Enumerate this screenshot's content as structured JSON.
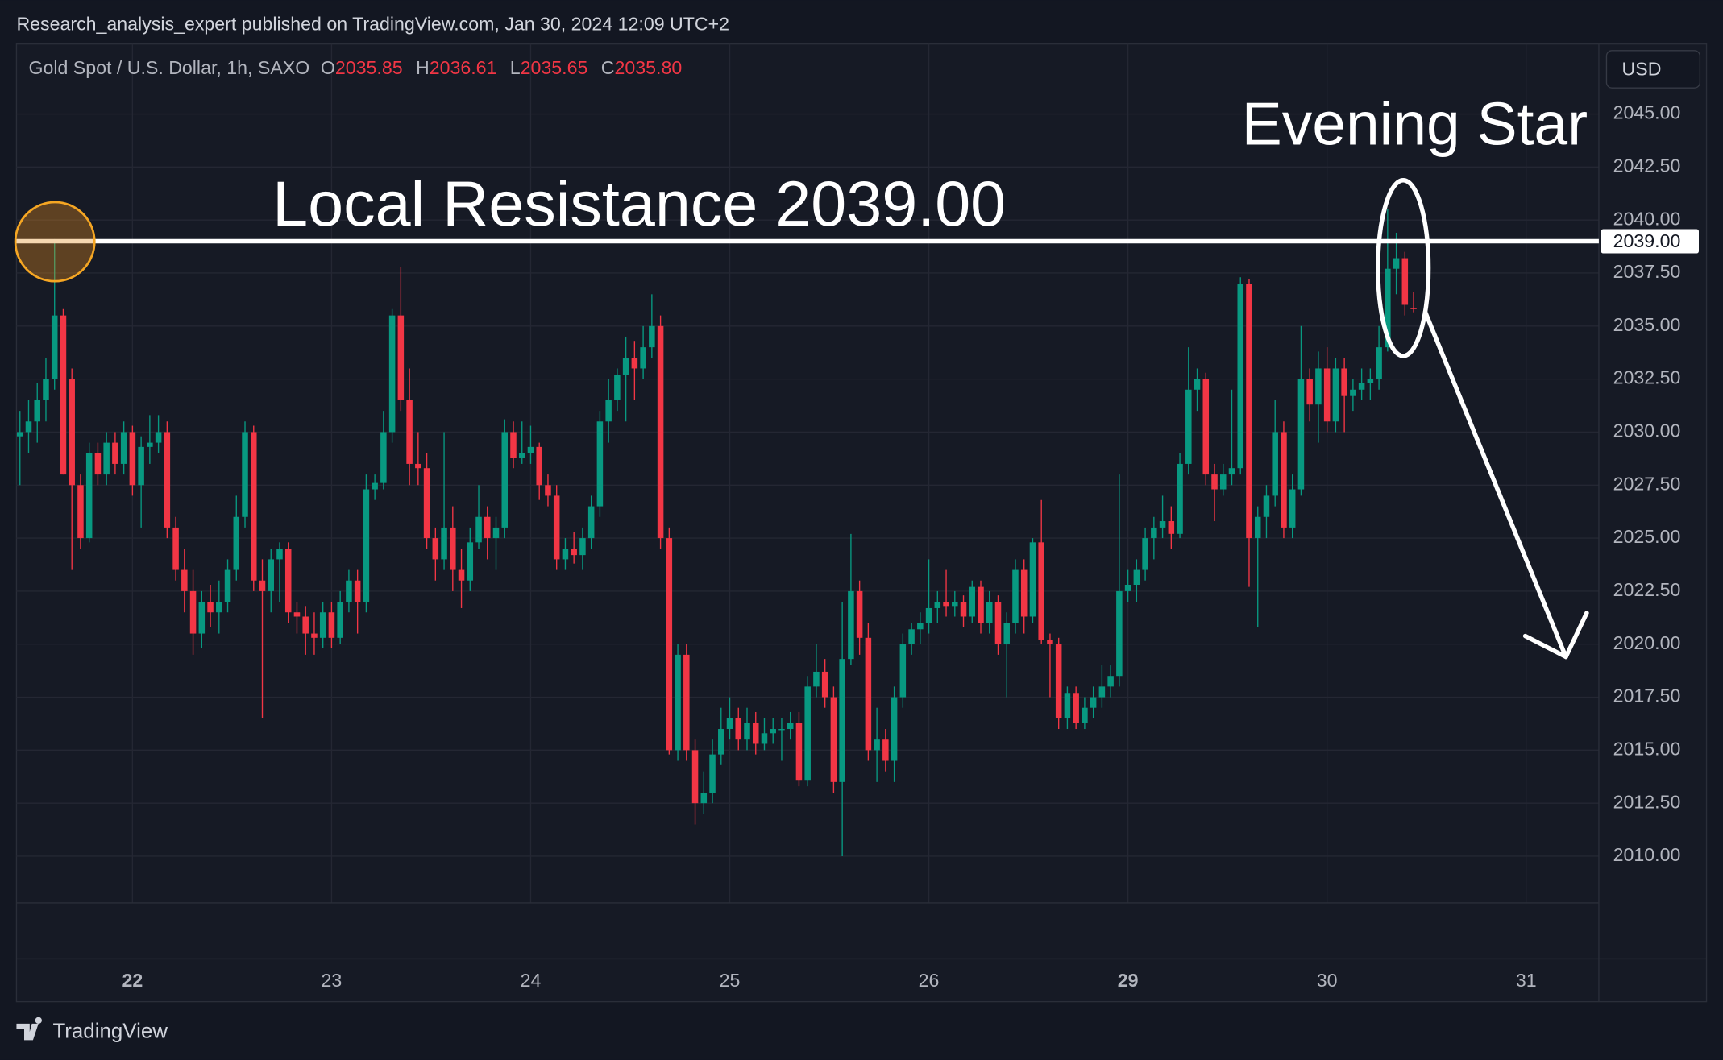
{
  "header": {
    "publisher": "Research_analysis_expert published on TradingView.com, Jan 30, 2024 12:09 UTC+2"
  },
  "chart_data": {
    "type": "candlestick",
    "symbol": "Gold Spot / U.S. Dollar, 1h, SAXO",
    "ohlc_legend": [
      {
        "label": "O",
        "value": "2035.85"
      },
      {
        "label": "H",
        "value": "2036.61"
      },
      {
        "label": "L",
        "value": "2035.65"
      },
      {
        "label": "C",
        "value": "2035.80"
      }
    ],
    "currency": "USD",
    "up_color": "#089981",
    "down_color": "#f23645",
    "candles": [
      [
        2029.8,
        2031,
        2027.5,
        2030.0
      ],
      [
        2030.0,
        2031.5,
        2029.0,
        2030.5
      ],
      [
        2030.5,
        2032.3,
        2029.5,
        2031.5
      ],
      [
        2031.5,
        2033.5,
        2030.5,
        2032.5
      ],
      [
        2032.5,
        2039.1,
        2032.0,
        2035.5
      ],
      [
        2035.5,
        2035.8,
        2028.0,
        2028.0
      ],
      [
        2032.5,
        2033,
        2023.5,
        2027.5
      ],
      [
        2027.5,
        2028,
        2024.5,
        2025.0
      ],
      [
        2025.0,
        2029.5,
        2024.8,
        2029.0
      ],
      [
        2029.0,
        2029.5,
        2027.5,
        2028.0
      ],
      [
        2028.0,
        2030,
        2027.5,
        2029.5
      ],
      [
        2029.5,
        2030,
        2028,
        2028.5
      ],
      [
        2028.5,
        2030.5,
        2028,
        2030.0
      ],
      [
        2030.0,
        2030.3,
        2027,
        2027.5
      ],
      [
        2027.5,
        2029.8,
        2025.5,
        2029.3
      ],
      [
        2029.3,
        2030.8,
        2028.5,
        2029.5
      ],
      [
        2029.5,
        2030.8,
        2029,
        2030.0
      ],
      [
        2030.0,
        2030.5,
        2025,
        2025.5
      ],
      [
        2025.5,
        2026,
        2023,
        2023.5
      ],
      [
        2023.5,
        2024.5,
        2021.5,
        2022.5
      ],
      [
        2022.5,
        2023.5,
        2019.5,
        2020.5
      ],
      [
        2020.5,
        2022.5,
        2019.8,
        2022.0
      ],
      [
        2022.0,
        2022.8,
        2020.8,
        2021.5
      ],
      [
        2021.5,
        2023,
        2020.5,
        2022.0
      ],
      [
        2022.0,
        2024,
        2021.5,
        2023.5
      ],
      [
        2023.5,
        2027,
        2023,
        2026.0
      ],
      [
        2026.0,
        2030.5,
        2025.5,
        2030.0
      ],
      [
        2030.0,
        2030.3,
        2022.5,
        2023.0
      ],
      [
        2023.0,
        2024,
        2016.5,
        2022.5
      ],
      [
        2022.5,
        2024.5,
        2021.5,
        2024.0
      ],
      [
        2024.0,
        2024.8,
        2022,
        2024.5
      ],
      [
        2024.5,
        2024.8,
        2021,
        2021.5
      ],
      [
        2021.5,
        2022,
        2020.5,
        2021.3
      ],
      [
        2021.3,
        2021.8,
        2019.5,
        2020.5
      ],
      [
        2020.5,
        2021.5,
        2019.5,
        2020.3
      ],
      [
        2020.3,
        2022,
        2019.8,
        2021.5
      ],
      [
        2021.5,
        2022,
        2019.8,
        2020.3
      ],
      [
        2020.3,
        2022.5,
        2020,
        2022.0
      ],
      [
        2022.0,
        2023.5,
        2021.5,
        2023.0
      ],
      [
        2023.0,
        2023.5,
        2020.5,
        2022.0
      ],
      [
        2022.0,
        2028,
        2021.5,
        2027.3
      ],
      [
        2027.3,
        2028,
        2026.8,
        2027.6
      ],
      [
        2027.6,
        2031,
        2027.3,
        2030.0
      ],
      [
        2030.0,
        2035.8,
        2029.5,
        2035.5
      ],
      [
        2035.5,
        2037.8,
        2031,
        2031.5
      ],
      [
        2031.5,
        2033,
        2027.5,
        2028.5
      ],
      [
        2028.5,
        2030,
        2027.5,
        2028.3
      ],
      [
        2028.3,
        2029,
        2024.5,
        2025.0
      ],
      [
        2025.0,
        2025.5,
        2023,
        2024.0
      ],
      [
        2024.0,
        2030,
        2023.5,
        2025.5
      ],
      [
        2025.5,
        2026.5,
        2022.5,
        2023.5
      ],
      [
        2023.5,
        2024.5,
        2021.7,
        2023.0
      ],
      [
        2023.0,
        2025.5,
        2022.5,
        2024.8
      ],
      [
        2024.8,
        2027.5,
        2024.5,
        2026.0
      ],
      [
        2026.0,
        2026.5,
        2024,
        2025.0
      ],
      [
        2025.0,
        2026,
        2023.5,
        2025.5
      ],
      [
        2025.5,
        2030.6,
        2025,
        2030.0
      ],
      [
        2030.0,
        2030.5,
        2028.3,
        2028.8
      ],
      [
        2028.8,
        2030.5,
        2028.5,
        2029.0
      ],
      [
        2029.0,
        2030.3,
        2028.5,
        2029.3
      ],
      [
        2029.3,
        2029.5,
        2026.8,
        2027.5
      ],
      [
        2027.5,
        2028,
        2026.5,
        2027.0
      ],
      [
        2027.0,
        2027.5,
        2023.5,
        2024.0
      ],
      [
        2024.0,
        2025,
        2023.5,
        2024.5
      ],
      [
        2024.5,
        2025.3,
        2023.8,
        2024.2
      ],
      [
        2024.2,
        2025.5,
        2023.5,
        2025.0
      ],
      [
        2025.0,
        2027,
        2024.5,
        2026.5
      ],
      [
        2026.5,
        2031,
        2026,
        2030.5
      ],
      [
        2030.5,
        2032.5,
        2029.5,
        2031.5
      ],
      [
        2031.5,
        2033,
        2031,
        2032.7
      ],
      [
        2032.7,
        2034.5,
        2030.5,
        2033.5
      ],
      [
        2033.5,
        2034.3,
        2031.5,
        2033.0
      ],
      [
        2033.0,
        2035,
        2032.5,
        2034.0
      ],
      [
        2034.0,
        2036.5,
        2033.5,
        2035.0
      ],
      [
        2035.0,
        2035.5,
        2024.5,
        2025.0
      ],
      [
        2025.0,
        2025.5,
        2014.8,
        2015.0
      ],
      [
        2015.0,
        2020,
        2014.5,
        2019.5
      ],
      [
        2019.5,
        2020,
        2014.5,
        2015.0
      ],
      [
        2015.0,
        2015.5,
        2011.5,
        2012.5
      ],
      [
        2012.5,
        2014,
        2012,
        2013.0
      ],
      [
        2013.0,
        2015.5,
        2012.5,
        2014.8
      ],
      [
        2014.8,
        2017,
        2014.3,
        2016.0
      ],
      [
        2016.0,
        2017.5,
        2015.5,
        2016.5
      ],
      [
        2016.5,
        2017,
        2015,
        2015.5
      ],
      [
        2015.5,
        2017,
        2015,
        2016.3
      ],
      [
        2016.3,
        2016.8,
        2014.8,
        2015.3
      ],
      [
        2015.3,
        2016.5,
        2015,
        2015.8
      ],
      [
        2015.8,
        2016.5,
        2015.3,
        2016.0
      ],
      [
        2016.0,
        2016.5,
        2014.5,
        2016.0
      ],
      [
        2016.0,
        2016.8,
        2015.5,
        2016.3
      ],
      [
        2016.3,
        2016.8,
        2013.3,
        2013.6
      ],
      [
        2013.6,
        2018.5,
        2013.3,
        2018.0
      ],
      [
        2018.0,
        2020,
        2017.5,
        2018.7
      ],
      [
        2018.7,
        2019.3,
        2017,
        2017.5
      ],
      [
        2017.5,
        2018,
        2013,
        2013.5
      ],
      [
        2013.5,
        2022,
        2010,
        2019.3
      ],
      [
        2019.3,
        2025.2,
        2019,
        2022.5
      ],
      [
        2022.5,
        2023,
        2019.5,
        2020.3
      ],
      [
        2020.3,
        2021,
        2014.5,
        2015.0
      ],
      [
        2015.0,
        2017,
        2013.5,
        2015.5
      ],
      [
        2015.5,
        2016,
        2014,
        2014.5
      ],
      [
        2014.5,
        2018,
        2013.5,
        2017.5
      ],
      [
        2017.5,
        2020.5,
        2017,
        2020.0
      ],
      [
        2020.0,
        2021,
        2019.5,
        2020.7
      ],
      [
        2020.7,
        2021.5,
        2020,
        2021.0
      ],
      [
        2021.0,
        2024,
        2020.5,
        2021.7
      ],
      [
        2021.7,
        2022.5,
        2021,
        2022.0
      ],
      [
        2022.0,
        2023.5,
        2021.3,
        2021.8
      ],
      [
        2021.8,
        2022.5,
        2021.3,
        2022.0
      ],
      [
        2022.0,
        2022.3,
        2020.8,
        2021.3
      ],
      [
        2021.3,
        2023,
        2021,
        2022.7
      ],
      [
        2022.7,
        2023,
        2020.5,
        2021.0
      ],
      [
        2021.0,
        2022.5,
        2020.5,
        2022.0
      ],
      [
        2022.0,
        2022.3,
        2019.5,
        2020.0
      ],
      [
        2020.0,
        2021.5,
        2017.5,
        2021.0
      ],
      [
        2021.0,
        2024,
        2020.5,
        2023.5
      ],
      [
        2023.5,
        2024,
        2020.5,
        2021.3
      ],
      [
        2021.3,
        2025,
        2021,
        2024.8
      ],
      [
        2024.8,
        2026.8,
        2020,
        2020.2
      ],
      [
        2020.2,
        2020.5,
        2017.5,
        2020.0
      ],
      [
        2020.0,
        2020.3,
        2016,
        2016.5
      ],
      [
        2016.5,
        2018,
        2016,
        2017.7
      ],
      [
        2017.7,
        2018,
        2016,
        2016.3
      ],
      [
        2016.3,
        2017.5,
        2016,
        2017.0
      ],
      [
        2017.0,
        2018,
        2016.5,
        2017.5
      ],
      [
        2017.5,
        2019,
        2017,
        2018.0
      ],
      [
        2018.0,
        2019,
        2017.5,
        2018.5
      ],
      [
        2018.5,
        2028,
        2018,
        2022.5
      ],
      [
        2022.5,
        2023.5,
        2022,
        2022.8
      ],
      [
        2022.8,
        2024,
        2022,
        2023.5
      ],
      [
        2023.5,
        2025.5,
        2023,
        2025.0
      ],
      [
        2025.0,
        2026,
        2024,
        2025.5
      ],
      [
        2025.5,
        2027,
        2025,
        2025.8
      ],
      [
        2025.8,
        2026.5,
        2024.5,
        2025.2
      ],
      [
        2025.2,
        2029,
        2025,
        2028.5
      ],
      [
        2028.5,
        2034,
        2028,
        2032.0
      ],
      [
        2032.0,
        2033,
        2031,
        2032.5
      ],
      [
        2032.5,
        2032.8,
        2027.5,
        2028.0
      ],
      [
        2028.0,
        2028.5,
        2025.8,
        2027.3
      ],
      [
        2027.3,
        2028.5,
        2027,
        2028.0
      ],
      [
        2028.0,
        2032,
        2027.5,
        2028.3
      ],
      [
        2028.3,
        2037.3,
        2028,
        2037.0
      ],
      [
        2037.0,
        2037.2,
        2022.7,
        2025.0
      ],
      [
        2025.0,
        2026.5,
        2020.8,
        2026.0
      ],
      [
        2026.0,
        2027.5,
        2025,
        2027.0
      ],
      [
        2027.0,
        2031.5,
        2026.5,
        2030.0
      ],
      [
        2030.0,
        2030.5,
        2025,
        2025.5
      ],
      [
        2025.5,
        2028,
        2025,
        2027.3
      ],
      [
        2027.3,
        2035,
        2027,
        2032.5
      ],
      [
        2032.5,
        2033,
        2030.5,
        2031.3
      ],
      [
        2031.3,
        2033.8,
        2029.5,
        2033.0
      ],
      [
        2033.0,
        2034,
        2030,
        2030.5
      ],
      [
        2030.5,
        2033.5,
        2030,
        2033.0
      ],
      [
        2033.0,
        2033.5,
        2030,
        2031.7
      ],
      [
        2031.7,
        2032.5,
        2031,
        2032.0
      ],
      [
        2032.0,
        2033,
        2031.5,
        2032.3
      ],
      [
        2032.3,
        2033,
        2031.5,
        2032.5
      ],
      [
        2032.5,
        2035,
        2032,
        2034.0
      ],
      [
        2034.0,
        2040.5,
        2033.8,
        2037.7
      ],
      [
        2037.7,
        2039.4,
        2036.5,
        2038.2
      ],
      [
        2038.2,
        2038.5,
        2035.5,
        2036.0
      ],
      [
        2035.85,
        2036.61,
        2035.65,
        2035.8
      ]
    ],
    "xlim": [
      -0.4,
      182.4
    ],
    "xticks": [
      {
        "value": 13,
        "label": "22"
      },
      {
        "value": 36,
        "label": "23"
      },
      {
        "value": 59,
        "label": "24"
      },
      {
        "value": 82,
        "label": "25"
      },
      {
        "value": 105,
        "label": "26"
      },
      {
        "value": 128,
        "label": "29"
      },
      {
        "value": 151,
        "label": "30"
      },
      {
        "value": 174,
        "label": "31"
      }
    ],
    "ylim": [
      2007.8,
      2048.3
    ],
    "yticks": [
      {
        "value": 2010,
        "label": "2010.00"
      },
      {
        "value": 2012.5,
        "label": "2012.50"
      },
      {
        "value": 2015,
        "label": "2015.00"
      },
      {
        "value": 2017.5,
        "label": "2017.50"
      },
      {
        "value": 2020,
        "label": "2020.00"
      },
      {
        "value": 2022.5,
        "label": "2022.50"
      },
      {
        "value": 2025,
        "label": "2025.00"
      },
      {
        "value": 2027.5,
        "label": "2027.50"
      },
      {
        "value": 2030,
        "label": "2030.00"
      },
      {
        "value": 2032.5,
        "label": "2032.50"
      },
      {
        "value": 2035,
        "label": "2035.00"
      },
      {
        "value": 2037.5,
        "label": "2037.50"
      },
      {
        "value": 2040,
        "label": "2040.00"
      },
      {
        "value": 2042.5,
        "label": "2042.50"
      },
      {
        "value": 2045,
        "label": "2045.00"
      }
    ],
    "grid": true,
    "resistance": {
      "value": 2039,
      "label": "2039.00"
    },
    "annotations": [
      "Local Resistance 2039.00",
      "Evening Star"
    ]
  },
  "footer": {
    "brand": "TradingView"
  }
}
